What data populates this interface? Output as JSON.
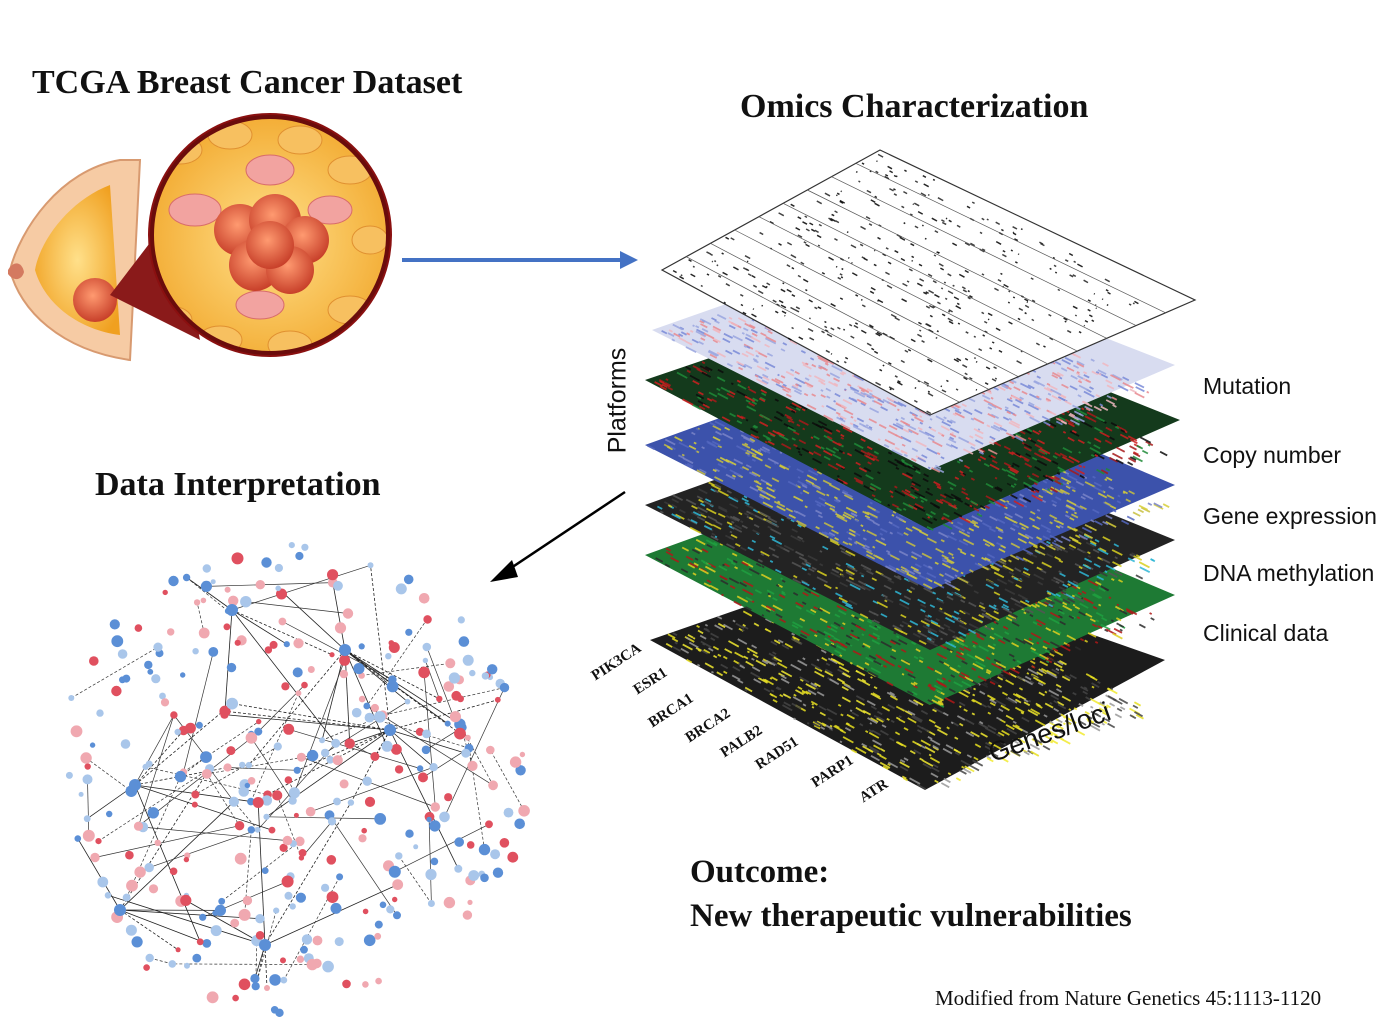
{
  "titles": {
    "dataset": "TCGA Breast Cancer Dataset",
    "omics": "Omics Characterization",
    "interpretation": "Data Interpretation"
  },
  "outcome": {
    "line1": "Outcome:",
    "line2": "New therapeutic vulnerabilities"
  },
  "citation": "Modified from Nature Genetics 45:1113-1120",
  "axis_labels": {
    "platforms": "Platforms",
    "genes": "Genes/loci"
  },
  "layers": [
    {
      "label": "Mutation",
      "color": "#ffffff"
    },
    {
      "label": "Copy number",
      "color": "#c8cde6"
    },
    {
      "label": "Gene expression",
      "color": "#1a5a2a"
    },
    {
      "label": "DNA methylation",
      "color": "#3b4fa8"
    },
    {
      "label": "Clinical data",
      "color": "#d8d020"
    }
  ],
  "genes": [
    "PIK3CA",
    "ESR1",
    "BRCA1",
    "BRCA2",
    "PALB2",
    "RAD51",
    "PARP1",
    "ATR"
  ],
  "colors": {
    "arrow_blue": "#4472c4",
    "arrow_black": "#000000",
    "node_blue": "#5b8fd6",
    "node_lightblue": "#a9c6ea",
    "node_red": "#e0505f",
    "node_pink": "#f0a8b0"
  }
}
